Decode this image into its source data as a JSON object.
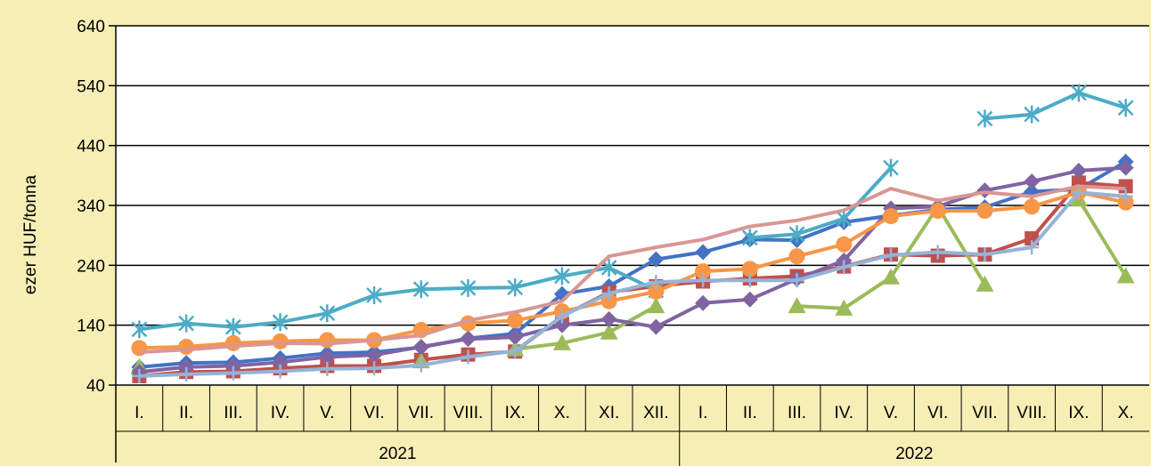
{
  "chart_data": {
    "type": "line",
    "ylabel": "ezer HUF/tonna",
    "ylim": [
      40,
      640
    ],
    "yticks": [
      40,
      140,
      240,
      340,
      440,
      540,
      640
    ],
    "grid": true,
    "legend": "none",
    "categories": [
      "I.",
      "II.",
      "III.",
      "IV.",
      "V.",
      "VI.",
      "VII.",
      "VIII.",
      "IX.",
      "X.",
      "XI.",
      "XII.",
      "I.",
      "II.",
      "III.",
      "IV.",
      "V.",
      "VI.",
      "VII.",
      "VIII.",
      "IX.",
      "X."
    ],
    "years": [
      {
        "label": "2021",
        "start": 0,
        "count": 12
      },
      {
        "label": "2022",
        "start": 12,
        "count": 10
      }
    ],
    "series": [
      {
        "color": "#4472c4",
        "marker": "diamond",
        "values": [
          70,
          77,
          78,
          85,
          93,
          95,
          103,
          118,
          126,
          192,
          205,
          250,
          262,
          283,
          282,
          312,
          323,
          333,
          337,
          363,
          367,
          413
        ]
      },
      {
        "color": "#c0504d",
        "marker": "square",
        "values": [
          55,
          62,
          63,
          68,
          72,
          72,
          82,
          91,
          96,
          155,
          195,
          205,
          213,
          218,
          222,
          238,
          258,
          256,
          258,
          285,
          378,
          372
        ]
      },
      {
        "color": "#9bbb59",
        "marker": "triangle",
        "values": [
          70,
          null,
          null,
          null,
          null,
          null,
          80,
          null,
          100,
          110,
          128,
          172,
          null,
          null,
          172,
          168,
          220,
          338,
          208,
          null,
          350,
          222
        ]
      },
      {
        "color": "#8064a2",
        "marker": "diamond",
        "values": [
          62,
          70,
          72,
          78,
          87,
          90,
          104,
          117,
          120,
          140,
          150,
          137,
          177,
          183,
          217,
          248,
          335,
          338,
          365,
          380,
          398,
          403
        ]
      },
      {
        "color": "#4bacc6",
        "marker": "star",
        "values": [
          133,
          143,
          137,
          145,
          160,
          190,
          200,
          202,
          203,
          222,
          236,
          198,
          null,
          286,
          292,
          318,
          403,
          null,
          485,
          492,
          528,
          503
        ]
      },
      {
        "color": "#f79646",
        "marker": "circle",
        "values": [
          102,
          104,
          110,
          113,
          115,
          115,
          132,
          143,
          148,
          163,
          180,
          196,
          230,
          234,
          255,
          275,
          322,
          331,
          331,
          338,
          362,
          345
        ]
      },
      {
        "color": "#d99694",
        "marker": "none",
        "values": [
          95,
          99,
          105,
          110,
          109,
          115,
          123,
          148,
          162,
          180,
          255,
          270,
          283,
          305,
          315,
          332,
          368,
          348,
          362,
          355,
          372,
          368
        ]
      },
      {
        "color": "#95b3d7",
        "marker": "plus",
        "values": [
          55,
          58,
          60,
          63,
          67,
          68,
          73,
          87,
          97,
          155,
          193,
          212,
          215,
          215,
          215,
          237,
          257,
          262,
          258,
          270,
          362,
          355
        ]
      }
    ]
  }
}
